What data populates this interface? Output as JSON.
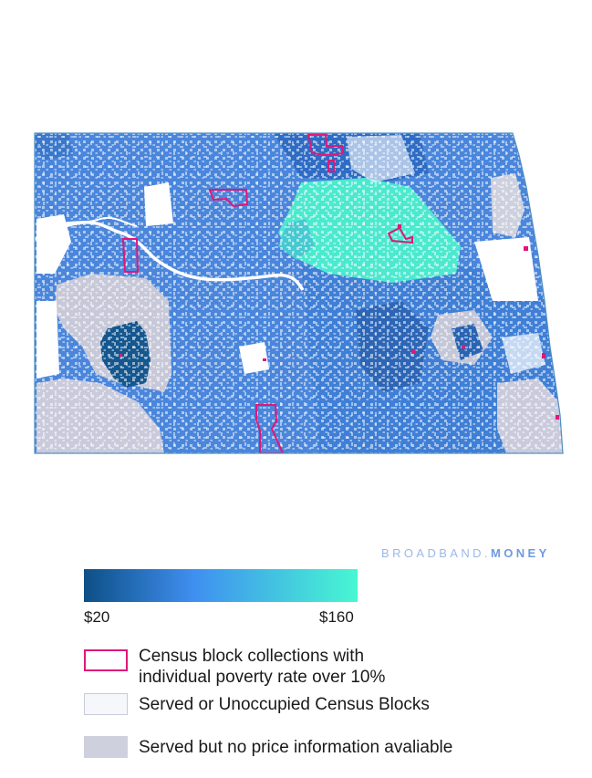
{
  "brand": {
    "part1": "BROADBAND.",
    "part2": "MONEY"
  },
  "colors": {
    "gradient_start": "#0d4f86",
    "gradient_mid": "#3f8ff0",
    "gradient_end": "#47f7d2",
    "poverty_outline": "#e0177a",
    "served_fill": "#f6f7fb",
    "no_price_fill": "#cfd0dd",
    "state_outline": "#4e8fc2"
  },
  "legend": {
    "scale_min": "$20",
    "scale_max": "$160",
    "poverty_line1": "Census block collections with",
    "poverty_line2": "individual poverty rate over 10%",
    "served": "Served or Unoccupied Census Blocks",
    "no_price": "Served but no price information avaliable"
  }
}
